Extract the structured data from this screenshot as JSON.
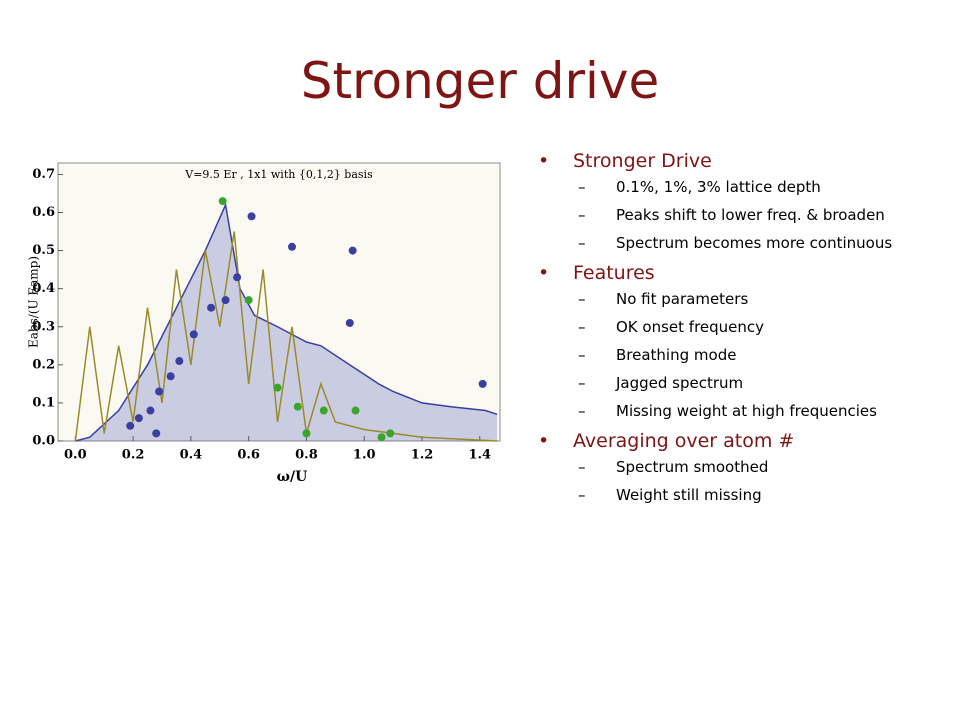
{
  "title": "Stronger drive",
  "bullets": [
    {
      "text": "Stronger Drive",
      "items": [
        "0.1%, 1%, 3% lattice depth",
        "Peaks shift to lower freq. & broaden",
        "Spectrum becomes more continuous"
      ]
    },
    {
      "text": "Features",
      "items": [
        "No fit parameters",
        "OK onset frequency",
        "Breathing mode",
        "Jagged spectrum",
        "Missing weight at high frequencies"
      ]
    },
    {
      "text": "Averaging over atom #",
      "items": [
        "Spectrum smoothed",
        "Weight still missing"
      ]
    }
  ],
  "chart_data": {
    "type": "scatter",
    "title": "V=9.5 Er , 1x1 with {0,1,2} basis",
    "x_label": "ω/U",
    "y_label": "Eabs/(U Eamp)",
    "xlim": [
      -0.06,
      1.47
    ],
    "ylim": [
      0,
      0.73
    ],
    "xticks": [
      {
        "value": 0,
        "label": "0.0"
      },
      0.2,
      0.4,
      0.6,
      0.8,
      {
        "value": 1,
        "label": "1.0"
      },
      1.2,
      1.4
    ],
    "yticks": [
      {
        "value": 0,
        "label": "0.0"
      },
      0.1,
      0.2,
      0.3,
      0.4,
      0.5,
      0.6,
      0.7
    ],
    "lines": [
      {
        "color": "#3a3fa0",
        "fill": "rgba(90,100,190,0.3)",
        "x": [
          0.0,
          0.05,
          0.15,
          0.25,
          0.35,
          0.45,
          0.52,
          0.57,
          0.62,
          0.7,
          0.8,
          0.85,
          0.95,
          1.05,
          1.1,
          1.2,
          1.3,
          1.42,
          1.46
        ],
        "values": [
          0.0,
          0.01,
          0.08,
          0.2,
          0.35,
          0.5,
          0.62,
          0.4,
          0.33,
          0.3,
          0.26,
          0.25,
          0.2,
          0.15,
          0.13,
          0.1,
          0.09,
          0.08,
          0.07
        ]
      },
      {
        "color": "#9a8a2a",
        "fill": "none",
        "x": [
          0.0,
          0.05,
          0.1,
          0.15,
          0.2,
          0.25,
          0.3,
          0.35,
          0.4,
          0.45,
          0.5,
          0.55,
          0.6,
          0.65,
          0.7,
          0.75,
          0.8,
          0.85,
          0.9,
          1.0,
          1.1,
          1.2,
          1.46
        ],
        "values": [
          0.0,
          0.3,
          0.02,
          0.25,
          0.05,
          0.35,
          0.1,
          0.45,
          0.2,
          0.5,
          0.3,
          0.55,
          0.15,
          0.45,
          0.05,
          0.3,
          0.02,
          0.15,
          0.05,
          0.03,
          0.02,
          0.01,
          0.0
        ]
      }
    ],
    "series": [
      {
        "color": "#3a3fa0",
        "x": [
          0.61,
          0.75,
          0.96,
          0.95,
          1.41,
          0.56,
          0.52,
          0.47,
          0.41,
          0.36,
          0.33,
          0.29,
          0.26,
          0.22,
          0.19,
          0.28
        ],
        "values": [
          0.59,
          0.51,
          0.5,
          0.31,
          0.15,
          0.43,
          0.37,
          0.35,
          0.28,
          0.21,
          0.17,
          0.13,
          0.08,
          0.06,
          0.04,
          0.02
        ]
      },
      {
        "color": "#3aa52a",
        "x": [
          0.51,
          0.6,
          0.7,
          0.77,
          0.86,
          0.97,
          1.09,
          1.06,
          0.8
        ],
        "values": [
          0.63,
          0.37,
          0.14,
          0.09,
          0.08,
          0.08,
          0.02,
          0.01,
          0.02
        ]
      }
    ]
  }
}
